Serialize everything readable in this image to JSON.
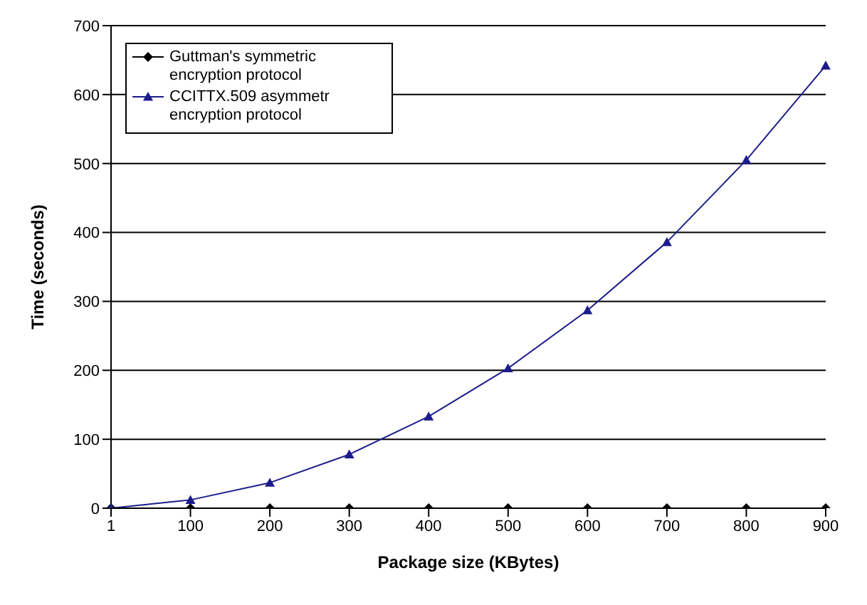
{
  "chart_data": {
    "type": "line",
    "xlabel": "Package size (KBytes)",
    "ylabel": "Time (seconds)",
    "categories": [
      "1",
      "100",
      "200",
      "300",
      "400",
      "500",
      "600",
      "700",
      "800",
      "900"
    ],
    "series": [
      {
        "name": "Guttman's symmetric encryption protocol",
        "color": "#000000",
        "marker": "diamond",
        "values": [
          0,
          0,
          0,
          0,
          0,
          0,
          0,
          0,
          0,
          0
        ]
      },
      {
        "name": "CCITTX.509 asymmetr encryption protocol",
        "color": "#1c1c8c",
        "marker": "triangle",
        "values": [
          0,
          12,
          37,
          78,
          133,
          203,
          287,
          386,
          505,
          642
        ]
      }
    ],
    "ylim": [
      0,
      700
    ],
    "yticks": [
      0,
      100,
      200,
      300,
      400,
      500,
      600,
      700
    ],
    "grid": "y",
    "legend": "top left",
    "line_style": "solid"
  }
}
